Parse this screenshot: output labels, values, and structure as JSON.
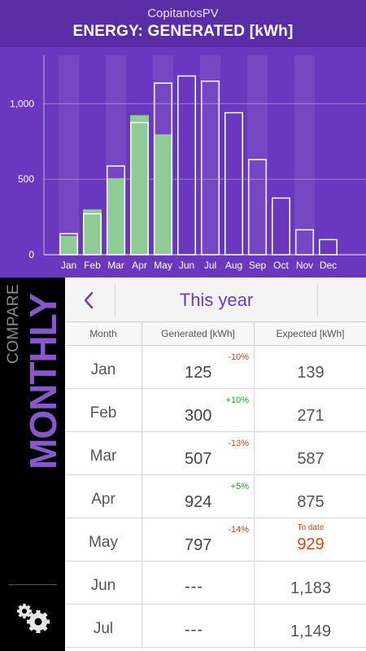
{
  "header": {
    "app_name": "CopitanosPV",
    "title": "ENERGY: GENERATED [kWh]"
  },
  "colors": {
    "header_bg": "#5a2da6",
    "chart_bg": "#6a38be",
    "generated_bar": "#8fcb95",
    "expected_outline": "#ffffff",
    "accent": "#6b3cc0",
    "negative": "#d04020",
    "positive": "#2a9a2a",
    "highlight": "#d1491a"
  },
  "chart_data": {
    "type": "bar",
    "categories": [
      "Jan",
      "Feb",
      "Mar",
      "Apr",
      "May",
      "Jun",
      "Jul",
      "Aug",
      "Sep",
      "Oct",
      "Nov",
      "Dec"
    ],
    "series": [
      {
        "name": "Generated [kWh]",
        "values": [
          125,
          300,
          507,
          924,
          797,
          null,
          null,
          null,
          null,
          null,
          null,
          null
        ]
      },
      {
        "name": "Expected [kWh]",
        "values": [
          139,
          271,
          587,
          875,
          1136,
          1183,
          1149,
          940,
          630,
          375,
          165,
          100
        ]
      }
    ],
    "y_ticks": [
      0,
      500,
      1000
    ],
    "y_tick_labels": [
      "0",
      "500",
      "1,000"
    ],
    "ylim": [
      0,
      1300
    ],
    "grid": true
  },
  "sidebar": {
    "compare_label": "COMPARE",
    "period_label": "MONTHLY",
    "settings_icon": "gear-icon"
  },
  "nav": {
    "back_icon": "chevron-left-icon",
    "title": "This year"
  },
  "table": {
    "headers": {
      "month": "Month",
      "generated": "Generated [kWh]",
      "expected": "Expected [kWh]"
    },
    "rows": [
      {
        "month": "Jan",
        "generated": "125",
        "delta": "-10%",
        "expected": "139"
      },
      {
        "month": "Feb",
        "generated": "300",
        "delta": "+10%",
        "expected": "271"
      },
      {
        "month": "Mar",
        "generated": "507",
        "delta": "-13%",
        "expected": "587"
      },
      {
        "month": "Apr",
        "generated": "924",
        "delta": "+5%",
        "expected": "875"
      },
      {
        "month": "May",
        "generated": "797",
        "delta": "-14%",
        "expected": "929",
        "expected_note": "To date"
      },
      {
        "month": "Jun",
        "generated": "---",
        "expected": "1,183"
      },
      {
        "month": "Jul",
        "generated": "---",
        "expected": "1,149"
      }
    ]
  }
}
